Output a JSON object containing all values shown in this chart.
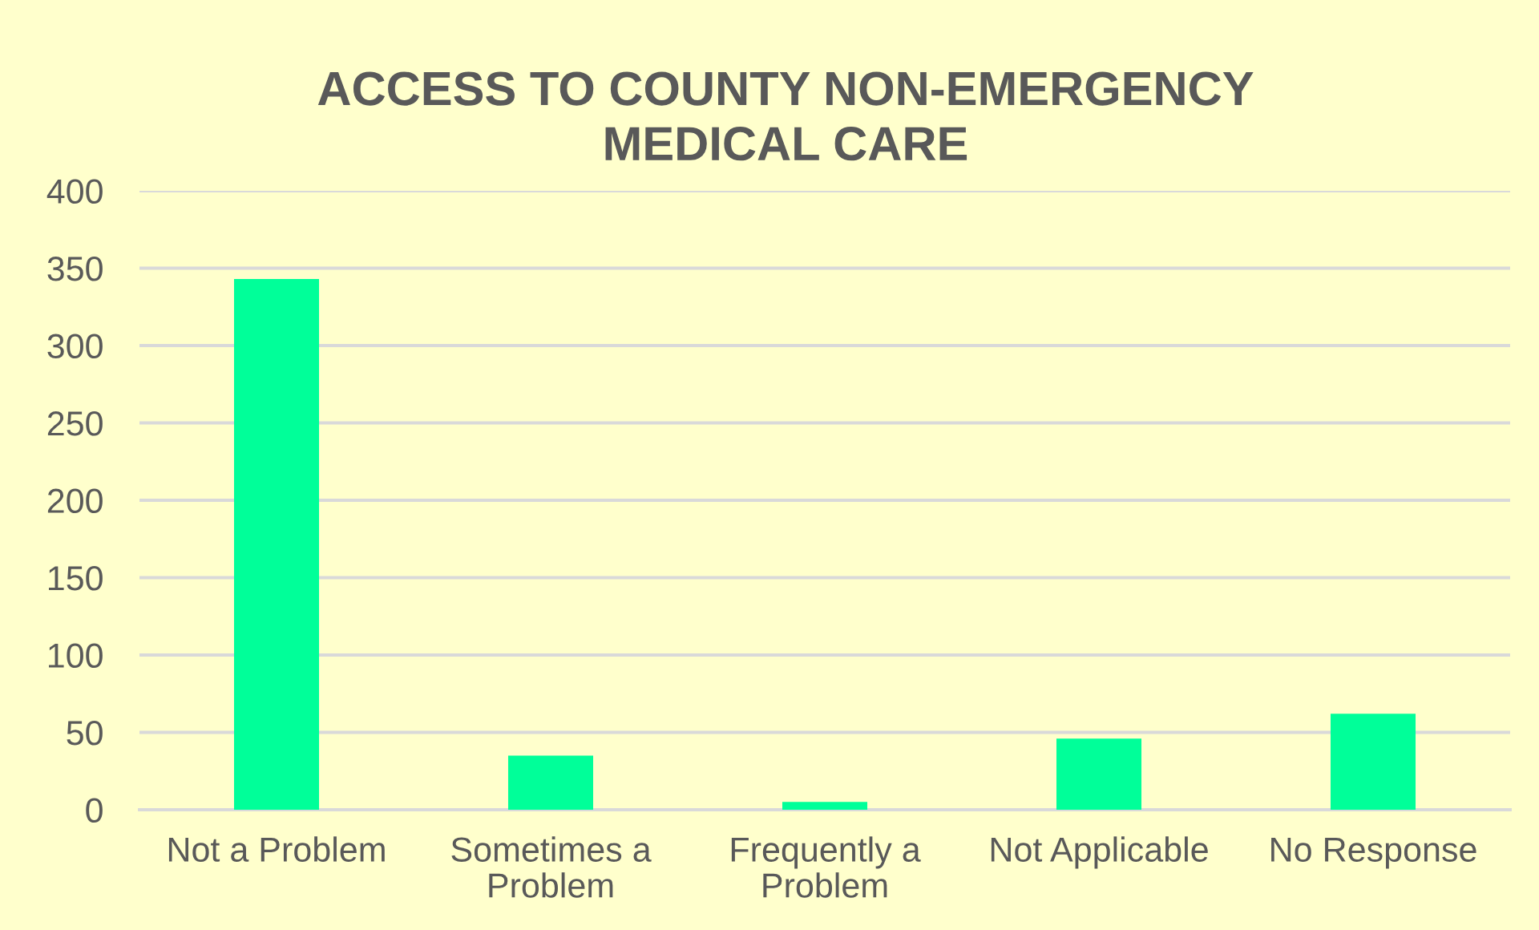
{
  "chart_data": {
    "type": "bar",
    "title": "ACCESS TO COUNTY NON-EMERGENCY MEDICAL CARE",
    "categories": [
      "Not a Problem",
      "Sometimes a Problem",
      "Frequently a Problem",
      "Not Applicable",
      "No Response"
    ],
    "values": [
      343,
      35,
      5,
      46,
      62
    ],
    "color": "#00ff99",
    "ylim": [
      0,
      400
    ],
    "yticks": [
      0,
      50,
      100,
      150,
      200,
      250,
      300,
      350,
      400
    ],
    "grid": "y"
  }
}
